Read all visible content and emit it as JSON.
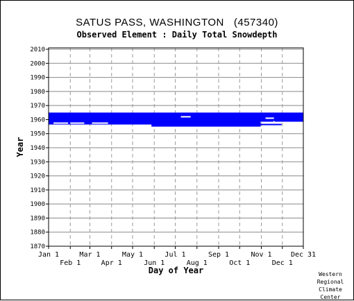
{
  "chart_data": {
    "type": "bar",
    "title": "SATUS PASS, WASHINGTON   (457340)",
    "subtitle": "Observed Element : Daily Total Snowdepth",
    "xlabel": "Day of Year",
    "ylabel": "Year",
    "ylim": [
      1870,
      2011
    ],
    "y_ticks": [
      1870,
      1880,
      1890,
      1900,
      1910,
      1920,
      1930,
      1940,
      1950,
      1960,
      1970,
      1980,
      1990,
      2000,
      2010
    ],
    "xlim": [
      1,
      365
    ],
    "x_ticks_top_row": [
      {
        "label": "Jan 1",
        "day": 1
      },
      {
        "label": "Mar 1",
        "day": 60
      },
      {
        "label": "May 1",
        "day": 121
      },
      {
        "label": "Jul 1",
        "day": 182
      },
      {
        "label": "Sep 1",
        "day": 244
      },
      {
        "label": "Nov 1",
        "day": 305
      },
      {
        "label": "Dec 31",
        "day": 365
      }
    ],
    "x_ticks_bottom_row": [
      {
        "label": "Feb 1",
        "day": 32
      },
      {
        "label": "Apr 1",
        "day": 91
      },
      {
        "label": "Jun 1",
        "day": 152
      },
      {
        "label": "Aug 1",
        "day": 213
      },
      {
        "label": "Oct 1",
        "day": 274
      },
      {
        "label": "Dec 1",
        "day": 335
      }
    ],
    "grid": true,
    "series_color": "#0000ff",
    "data_blocks": [
      {
        "year_start": 1956.5,
        "year_end": 1965,
        "day_start": 1,
        "day_end": 304
      },
      {
        "year_start": 1958.5,
        "year_end": 1965,
        "day_start": 304,
        "day_end": 365
      },
      {
        "year_start": 1955,
        "year_end": 1957,
        "day_start": 148,
        "day_end": 304
      },
      {
        "year_start": 1956,
        "year_end": 1957,
        "day_start": 304,
        "day_end": 334
      }
    ],
    "missing_gaps": [
      {
        "year": 1957.5,
        "day_start": 8,
        "day_end": 29
      },
      {
        "year": 1957.5,
        "day_start": 32,
        "day_end": 52
      },
      {
        "year": 1957.5,
        "day_start": 63,
        "day_end": 86
      },
      {
        "year": 1962,
        "day_start": 190,
        "day_end": 204
      },
      {
        "year": 1961,
        "day_start": 311,
        "day_end": 323
      },
      {
        "year": 1958.5,
        "day_start": 322,
        "day_end": 324
      }
    ]
  },
  "credit": [
    "Western",
    "Regional",
    "Climate",
    "Center"
  ]
}
